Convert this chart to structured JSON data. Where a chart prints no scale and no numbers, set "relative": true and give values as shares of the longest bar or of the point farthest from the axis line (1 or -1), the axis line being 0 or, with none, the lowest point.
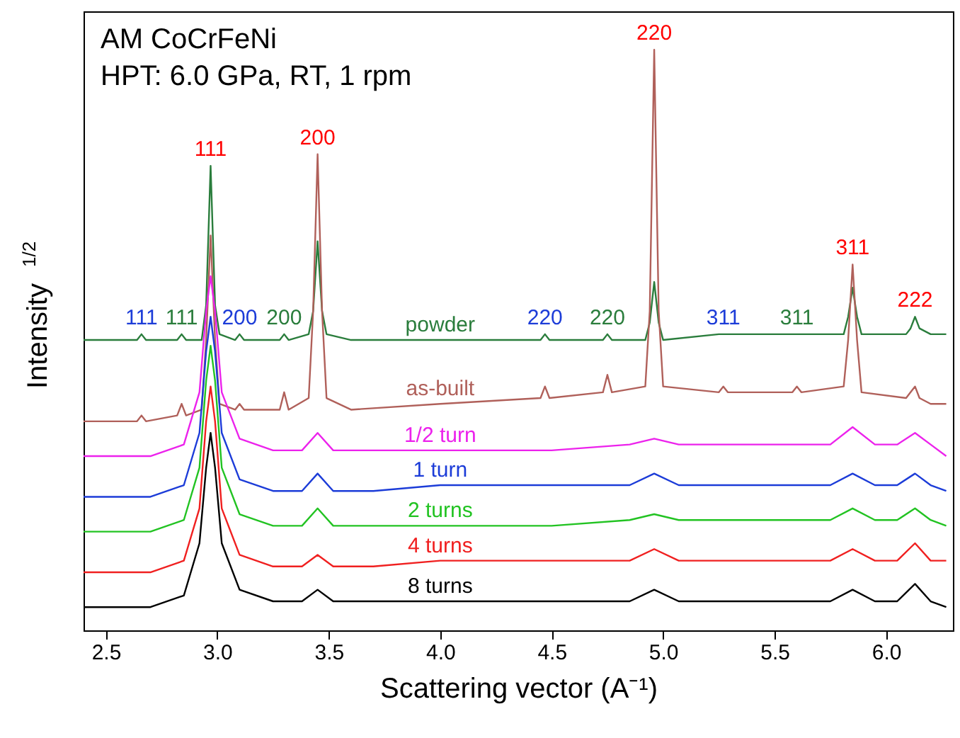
{
  "chart_data": {
    "type": "line",
    "title": "AM CoCrFeNi",
    "subtitle": "HPT: 6.0 GPa, RT, 1 rpm",
    "xlabel": "Scattering vector (A⁻¹)",
    "ylabel": "Intensity$^{1/2}$",
    "relative": true,
    "grid": false,
    "marker": "none",
    "line_style": "solid",
    "xlim": [
      2.4,
      6.3
    ],
    "xticks": [
      2.5,
      {
        "value": 3,
        "label": "3.0"
      },
      3.5,
      {
        "value": 4,
        "label": "4.0"
      },
      4.5,
      {
        "value": 5,
        "label": "5.0"
      },
      5.5,
      {
        "value": 6,
        "label": "6.0"
      }
    ],
    "x": [
      2.4,
      2.7,
      2.85,
      2.92,
      2.95,
      2.97,
      2.99,
      3.02,
      3.1,
      3.25,
      3.38,
      3.45,
      3.52,
      3.7,
      4.0,
      4.5,
      4.85,
      4.96,
      5.07,
      5.4,
      5.75,
      5.85,
      5.95,
      6.05,
      6.13,
      6.2,
      6.27
    ],
    "series": [
      {
        "name": "powder",
        "color": "#2a7d3c",
        "x": [
          2.4,
          2.64,
          2.66,
          2.68,
          2.82,
          2.84,
          2.86,
          2.93,
          2.95,
          2.97,
          2.99,
          3.01,
          3.08,
          3.1,
          3.12,
          3.28,
          3.3,
          3.32,
          3.41,
          3.43,
          3.45,
          3.47,
          3.49,
          3.6,
          4.0,
          4.45,
          4.47,
          4.49,
          4.73,
          4.75,
          4.77,
          4.92,
          4.94,
          4.96,
          4.98,
          5.0,
          5.25,
          5.27,
          5.29,
          5.58,
          5.6,
          5.62,
          5.81,
          5.83,
          5.85,
          5.87,
          5.89,
          6.09,
          6.11,
          6.13,
          6.15,
          6.2,
          6.27
        ],
        "values": [
          0.5,
          0.5,
          0.51,
          0.5,
          0.5,
          0.51,
          0.5,
          0.5,
          0.56,
          0.8,
          0.56,
          0.51,
          0.5,
          0.51,
          0.5,
          0.5,
          0.51,
          0.5,
          0.51,
          0.55,
          0.67,
          0.55,
          0.51,
          0.5,
          0.5,
          0.5,
          0.51,
          0.5,
          0.5,
          0.51,
          0.5,
          0.5,
          0.53,
          0.6,
          0.53,
          0.5,
          0.51,
          0.51,
          0.51,
          0.51,
          0.51,
          0.51,
          0.51,
          0.54,
          0.59,
          0.54,
          0.51,
          0.51,
          0.52,
          0.54,
          0.52,
          0.51,
          0.51
        ]
      },
      {
        "name": "as-built",
        "color": "#b0605a",
        "x": [
          2.4,
          2.64,
          2.66,
          2.68,
          2.82,
          2.84,
          2.86,
          2.93,
          2.95,
          2.97,
          2.99,
          3.01,
          3.08,
          3.1,
          3.12,
          3.28,
          3.3,
          3.32,
          3.41,
          3.43,
          3.45,
          3.47,
          3.49,
          3.6,
          4.0,
          4.45,
          4.47,
          4.49,
          4.73,
          4.75,
          4.77,
          4.92,
          4.94,
          4.96,
          4.98,
          5.0,
          5.25,
          5.27,
          5.29,
          5.58,
          5.6,
          5.62,
          5.81,
          5.83,
          5.85,
          5.87,
          5.89,
          6.09,
          6.11,
          6.13,
          6.15,
          6.2,
          6.27
        ],
        "values": [
          0.36,
          0.36,
          0.37,
          0.36,
          0.37,
          0.39,
          0.37,
          0.38,
          0.5,
          0.68,
          0.5,
          0.39,
          0.38,
          0.39,
          0.38,
          0.38,
          0.41,
          0.38,
          0.4,
          0.55,
          0.82,
          0.55,
          0.4,
          0.38,
          0.39,
          0.4,
          0.42,
          0.4,
          0.41,
          0.44,
          0.41,
          0.42,
          0.55,
          1.0,
          0.55,
          0.42,
          0.41,
          0.42,
          0.41,
          0.41,
          0.42,
          0.41,
          0.42,
          0.5,
          0.63,
          0.5,
          0.41,
          0.4,
          0.41,
          0.42,
          0.4,
          0.39,
          0.39
        ]
      },
      {
        "name": "1/2 turn",
        "color": "#ec22ec",
        "values": [
          0.3,
          0.3,
          0.32,
          0.41,
          0.55,
          0.61,
          0.55,
          0.41,
          0.33,
          0.31,
          0.31,
          0.34,
          0.31,
          0.31,
          0.31,
          0.31,
          0.32,
          0.33,
          0.32,
          0.32,
          0.32,
          0.35,
          0.32,
          0.32,
          0.34,
          0.32,
          0.3
        ]
      },
      {
        "name": "1 turn",
        "color": "#1c3cd8",
        "values": [
          0.23,
          0.23,
          0.25,
          0.34,
          0.48,
          0.54,
          0.48,
          0.34,
          0.26,
          0.24,
          0.24,
          0.27,
          0.24,
          0.24,
          0.25,
          0.25,
          0.25,
          0.27,
          0.25,
          0.25,
          0.25,
          0.27,
          0.25,
          0.25,
          0.27,
          0.25,
          0.24
        ]
      },
      {
        "name": "2 turns",
        "color": "#22c322",
        "values": [
          0.17,
          0.17,
          0.19,
          0.28,
          0.43,
          0.49,
          0.43,
          0.28,
          0.2,
          0.18,
          0.18,
          0.21,
          0.18,
          0.18,
          0.18,
          0.18,
          0.19,
          0.2,
          0.19,
          0.19,
          0.19,
          0.21,
          0.19,
          0.19,
          0.21,
          0.19,
          0.18
        ]
      },
      {
        "name": "4 turns",
        "color": "#f02020",
        "values": [
          0.1,
          0.1,
          0.12,
          0.21,
          0.36,
          0.42,
          0.36,
          0.21,
          0.13,
          0.11,
          0.11,
          0.13,
          0.11,
          0.11,
          0.12,
          0.12,
          0.12,
          0.14,
          0.12,
          0.12,
          0.12,
          0.14,
          0.12,
          0.12,
          0.15,
          0.12,
          0.12
        ]
      },
      {
        "name": "8 turns",
        "color": "#000000",
        "values": [
          0.04,
          0.04,
          0.06,
          0.15,
          0.28,
          0.34,
          0.28,
          0.15,
          0.07,
          0.05,
          0.05,
          0.07,
          0.05,
          0.05,
          0.05,
          0.05,
          0.05,
          0.07,
          0.05,
          0.05,
          0.05,
          0.07,
          0.05,
          0.05,
          0.08,
          0.05,
          0.04
        ]
      }
    ],
    "annotations": [
      {
        "text": "111",
        "x": 2.97,
        "y": 0.8
      },
      {
        "text": "200",
        "x": 3.45,
        "y": 0.82
      },
      {
        "text": "220",
        "x": 4.96,
        "y": 1.0
      },
      {
        "text": "311",
        "x": 5.85,
        "y": 0.63
      },
      {
        "text": "222",
        "x": 6.13,
        "y": 0.54
      },
      {
        "text": "111",
        "x": 2.66,
        "y": 0.51
      },
      {
        "text": "111",
        "x": 2.84,
        "y": 0.51
      },
      {
        "text": "200",
        "x": 3.1,
        "y": 0.51
      },
      {
        "text": "200",
        "x": 3.3,
        "y": 0.51
      },
      {
        "text": "220",
        "x": 4.47,
        "y": 0.51
      },
      {
        "text": "220",
        "x": 4.75,
        "y": 0.51
      },
      {
        "text": "311",
        "x": 5.27,
        "y": 0.51
      },
      {
        "text": "311",
        "x": 5.6,
        "y": 0.51
      }
    ]
  }
}
